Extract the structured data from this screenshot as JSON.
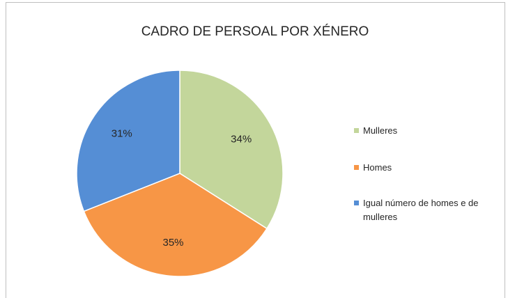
{
  "chart_data": {
    "type": "pie",
    "title": "CADRO DE PERSOAL POR XÉNERO",
    "categories": [
      "Mulleres",
      "Homes",
      "Igual número de homes e de mulleres"
    ],
    "values": [
      34,
      35,
      31
    ],
    "value_labels": [
      "34%",
      "35%",
      "31%"
    ],
    "colors": [
      "#c3d69b",
      "#f79646",
      "#558ed5"
    ],
    "legend": "right"
  }
}
